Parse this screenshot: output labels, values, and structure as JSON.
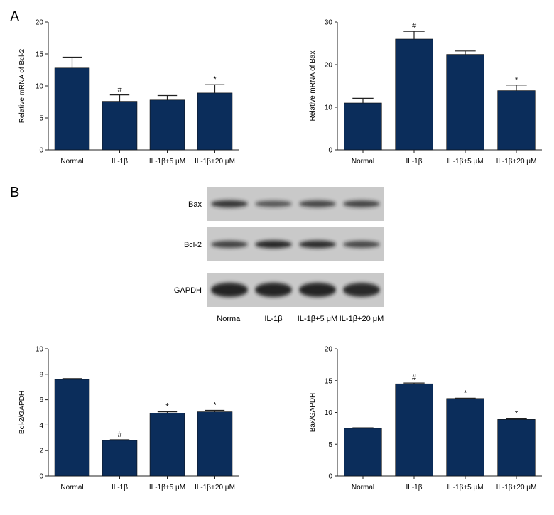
{
  "panels": {
    "a": "A",
    "b": "B"
  },
  "colors": {
    "bar": "#0b2d5b",
    "axis": "#222222",
    "blot_bg": "#c9c9c9",
    "band": "#1e1e1e"
  },
  "blot": {
    "rows": [
      "Bax",
      "Bcl-2",
      "GAPDH"
    ],
    "lanes": [
      "Normal",
      "IL-1β",
      "IL-1β+5 μM",
      "IL-1β+20 μM"
    ],
    "band_intensity": {
      "Bax": [
        0.85,
        0.55,
        0.7,
        0.72
      ],
      "Bcl-2": [
        0.75,
        1.0,
        0.95,
        0.7
      ],
      "GAPDH": [
        1.0,
        1.0,
        1.0,
        0.95
      ]
    }
  },
  "chart_data": [
    {
      "type": "bar",
      "panel": "A",
      "categories": [
        "Normal",
        "IL-1β",
        "IL-1β+5 μM",
        "IL-1β+20 μM"
      ],
      "values": [
        12.8,
        7.6,
        7.8,
        8.9
      ],
      "errors": [
        1.7,
        1.0,
        0.7,
        1.3
      ],
      "annotations": [
        "",
        "#",
        "",
        "*"
      ],
      "ylabel": "Relative mRNA of Bcl-2",
      "ylim": [
        0,
        20
      ],
      "yticks": [
        "0",
        "5",
        "10",
        "15",
        "20"
      ]
    },
    {
      "type": "bar",
      "panel": "A",
      "categories": [
        "Normal",
        "IL-1β",
        "IL-1β+5 μM",
        "IL-1β+20 μM"
      ],
      "values": [
        11.0,
        26.0,
        22.4,
        13.9
      ],
      "errors": [
        1.1,
        1.8,
        0.8,
        1.3
      ],
      "annotations": [
        "",
        "#",
        "",
        "*"
      ],
      "ylabel": "Relative mRNA of Bax",
      "ylim": [
        0,
        30
      ],
      "yticks": [
        "0",
        "10",
        "20",
        "30"
      ]
    },
    {
      "type": "bar",
      "panel": "B",
      "categories": [
        "Normal",
        "IL-1β",
        "IL-1β+5 μM",
        "IL-1β+20 μM"
      ],
      "values": [
        7.6,
        2.8,
        4.95,
        5.05
      ],
      "errors": [
        0.06,
        0.05,
        0.1,
        0.12
      ],
      "annotations": [
        "",
        "#",
        "*",
        "*"
      ],
      "ylabel": "Bcl-2/GAPDH",
      "ylim": [
        0,
        10
      ],
      "yticks": [
        "0",
        "2",
        "4",
        "6",
        "8",
        "10"
      ]
    },
    {
      "type": "bar",
      "panel": "B",
      "categories": [
        "Normal",
        "IL-1β",
        "IL-1β+5 μM",
        "IL-1β+20 μM"
      ],
      "values": [
        7.5,
        14.5,
        12.2,
        8.9
      ],
      "errors": [
        0.08,
        0.12,
        0.05,
        0.1
      ],
      "annotations": [
        "",
        "#",
        "*",
        "*"
      ],
      "ylabel": "Bax/GAPDH",
      "ylim": [
        0,
        20
      ],
      "yticks": [
        "0",
        "5",
        "10",
        "15",
        "20"
      ]
    }
  ]
}
